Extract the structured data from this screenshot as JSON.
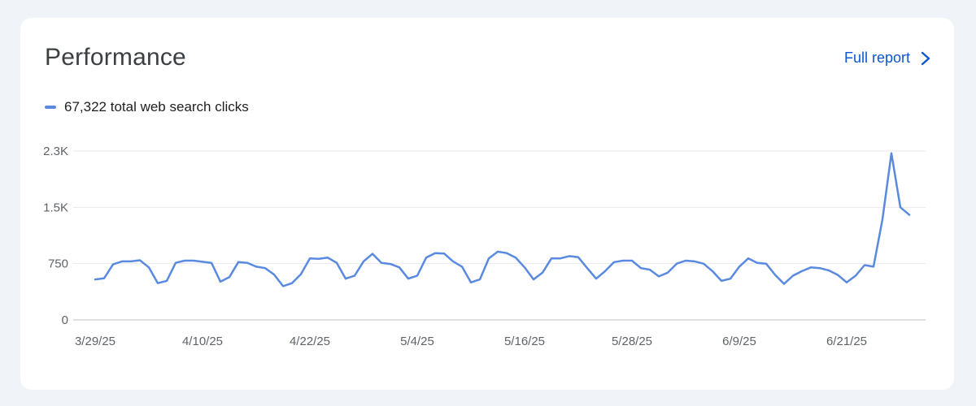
{
  "card": {
    "title": "Performance",
    "full_report_label": "Full report",
    "chevron_icon": "chevron-right-icon"
  },
  "legend": {
    "label": "67,322 total web search clicks",
    "color": "#5a8ae0"
  },
  "colors": {
    "background": "#f0f4f9",
    "card": "#ffffff",
    "link": "#0b57d0",
    "line": "#5a8ae0",
    "grid": "#e8eaed",
    "axis": "#5f6368"
  },
  "chart_data": {
    "type": "line",
    "x_start_label": "3/29/25",
    "x_tick_labels": [
      "3/29/25",
      "4/10/25",
      "4/22/25",
      "5/4/25",
      "5/16/25",
      "5/28/25",
      "6/9/25",
      "6/21/25"
    ],
    "y_tick_labels": [
      "0",
      "750",
      "1.5K",
      "2.3K"
    ],
    "y_ticks": [
      0,
      750,
      1500,
      2250
    ],
    "ylim": [
      0,
      2250
    ],
    "grid": true,
    "legend_position": "top-left",
    "series": [
      {
        "name": "67,322 total web search clicks",
        "values": [
          540,
          555,
          740,
          780,
          780,
          795,
          700,
          490,
          520,
          760,
          790,
          790,
          775,
          760,
          510,
          570,
          770,
          760,
          710,
          690,
          605,
          450,
          490,
          610,
          820,
          815,
          830,
          760,
          550,
          590,
          780,
          880,
          760,
          745,
          700,
          550,
          590,
          830,
          890,
          885,
          780,
          710,
          500,
          540,
          820,
          910,
          890,
          830,
          700,
          540,
          630,
          820,
          820,
          850,
          835,
          690,
          550,
          650,
          770,
          790,
          790,
          690,
          670,
          580,
          630,
          750,
          790,
          780,
          750,
          650,
          520,
          550,
          710,
          820,
          760,
          750,
          600,
          480,
          590,
          650,
          700,
          690,
          660,
          600,
          500,
          590,
          730,
          710,
          1340,
          2220,
          1500,
          1400
        ]
      }
    ]
  }
}
